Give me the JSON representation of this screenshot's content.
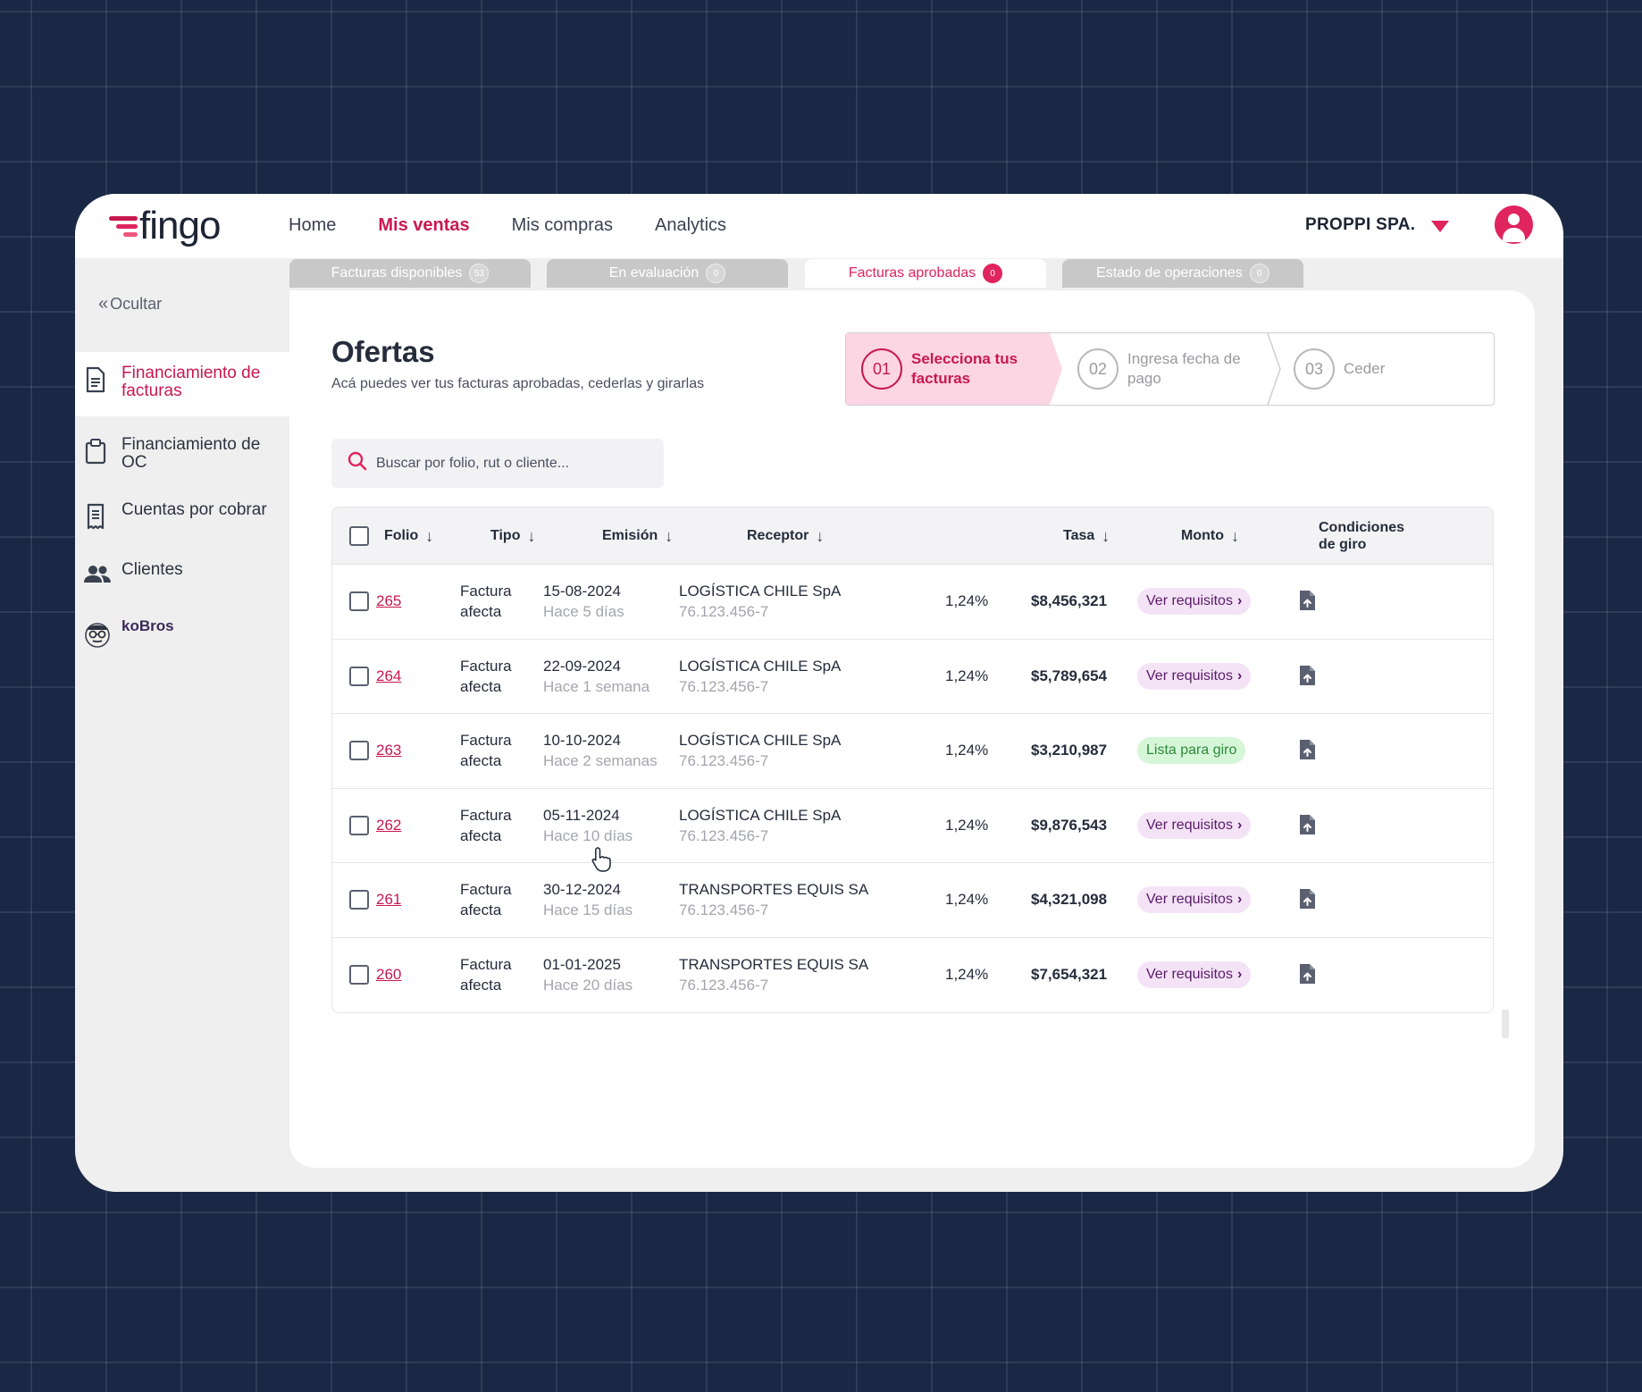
{
  "app": {
    "brand": "fingo",
    "brand_colors": {
      "primary": "#e0245e",
      "dark": "#c8184f"
    }
  },
  "nav": {
    "items": [
      {
        "label": "Home",
        "active": false
      },
      {
        "label": "Mis ventas",
        "active": true
      },
      {
        "label": "Mis compras",
        "active": false
      },
      {
        "label": "Analytics",
        "active": false
      }
    ]
  },
  "header": {
    "company": "PROPPI SPA.",
    "company_icon": "caret-down-icon",
    "user_icon": "user-avatar-icon"
  },
  "sidebar": {
    "hide_label": "Ocultar",
    "items": [
      {
        "label": "Financiamiento de facturas",
        "icon": "document-icon",
        "active": true
      },
      {
        "label": "Financiamiento de OC",
        "icon": "clipboard-icon",
        "active": false
      },
      {
        "label": "Cuentas por cobrar",
        "icon": "receipt-icon",
        "active": false
      },
      {
        "label": "Clientes",
        "icon": "people-icon",
        "active": false
      },
      {
        "label": "koBros",
        "icon": "kobros-mascot-icon",
        "active": false
      }
    ]
  },
  "tabs": [
    {
      "label": "Facturas disponibles",
      "count": "53",
      "active": false
    },
    {
      "label": "En evaluación",
      "count": "0",
      "active": false
    },
    {
      "label": "Facturas aprobadas",
      "count": "0",
      "active": true
    },
    {
      "label": "Estado de operaciones",
      "count": "0",
      "active": false
    }
  ],
  "page": {
    "title": "Ofertas",
    "subtitle": "Acá puedes ver tus facturas aprobadas, cederlas y girarlas"
  },
  "stepper": [
    {
      "number": "01",
      "label": "Selecciona tus facturas",
      "active": true
    },
    {
      "number": "02",
      "label": "Ingresa fecha de pago",
      "active": false
    },
    {
      "number": "03",
      "label": "Ceder",
      "active": false
    }
  ],
  "search": {
    "placeholder": "Buscar por folio, rut o cliente..."
  },
  "table": {
    "headers": {
      "folio": "Folio",
      "tipo": "Tipo",
      "emision": "Emisión",
      "receptor": "Receptor",
      "tasa": "Tasa",
      "monto": "Monto",
      "condiciones": "Condiciones de giro"
    },
    "rows": [
      {
        "folio": "265",
        "tipo": "Factura afecta",
        "fecha": "15-08-2024",
        "hace": "Hace 5 días",
        "receptor": "LOGÍSTICA CHILE SpA",
        "rut": "76.123.456-7",
        "tasa": "1,24%",
        "monto": "$8,456,321",
        "condicion": "Ver requisitos",
        "condicion_tipo": "req"
      },
      {
        "folio": "264",
        "tipo": "Factura afecta",
        "fecha": "22-09-2024",
        "hace": "Hace 1 semana",
        "receptor": "LOGÍSTICA CHILE SpA",
        "rut": "76.123.456-7",
        "tasa": "1,24%",
        "monto": "$5,789,654",
        "condicion": "Ver requisitos",
        "condicion_tipo": "req"
      },
      {
        "folio": "263",
        "tipo": "Factura afecta",
        "fecha": "10-10-2024",
        "hace": "Hace 2 semanas",
        "receptor": "LOGÍSTICA CHILE SpA",
        "rut": "76.123.456-7",
        "tasa": "1,24%",
        "monto": "$3,210,987",
        "condicion": "Lista para giro",
        "condicion_tipo": "ok"
      },
      {
        "folio": "262",
        "tipo": "Factura afecta",
        "fecha": "05-11-2024",
        "hace": "Hace 10 días",
        "receptor": "LOGÍSTICA CHILE SpA",
        "rut": "76.123.456-7",
        "tasa": "1,24%",
        "monto": "$9,876,543",
        "condicion": "Ver requisitos",
        "condicion_tipo": "req"
      },
      {
        "folio": "261",
        "tipo": "Factura afecta",
        "fecha": "30-12-2024",
        "hace": "Hace 15 días",
        "receptor": "TRANSPORTES EQUIS SA",
        "rut": "76.123.456-7",
        "tasa": "1,24%",
        "monto": "$4,321,098",
        "condicion": "Ver requisitos",
        "condicion_tipo": "req"
      },
      {
        "folio": "260",
        "tipo": "Factura afecta",
        "fecha": "01-01-2025",
        "hace": "Hace 20 días",
        "receptor": "TRANSPORTES EQUIS SA",
        "rut": "76.123.456-7",
        "tasa": "1,24%",
        "monto": "$7,654,321",
        "condicion": "Ver requisitos",
        "condicion_tipo": "req"
      }
    ]
  }
}
